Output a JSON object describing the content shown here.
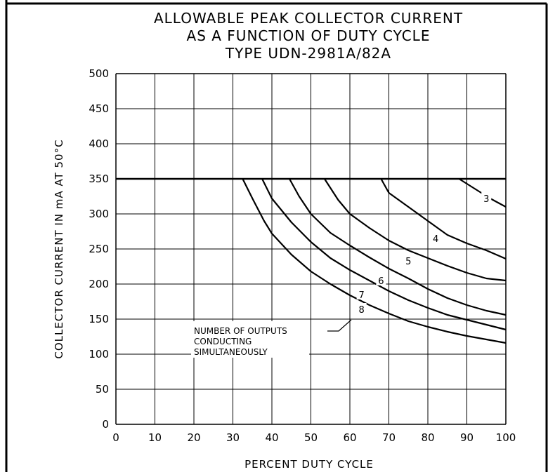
{
  "chart_data": {
    "type": "line",
    "title": [
      "ALLOWABLE PEAK COLLECTOR CURRENT",
      "AS A FUNCTION OF DUTY CYCLE",
      "TYPE UDN-2981A/82A"
    ],
    "xlabel": "PERCENT DUTY CYCLE",
    "ylabel": "COLLECTOR CURRENT IN mA AT 50°C",
    "xlim": [
      0,
      100
    ],
    "ylim": [
      0,
      500
    ],
    "xticks": [
      "0",
      "10",
      "20",
      "30",
      "40",
      "50",
      "60",
      "70",
      "80",
      "90",
      "100"
    ],
    "yticks": [
      "0",
      "50",
      "100",
      "150",
      "200",
      "250",
      "300",
      "350",
      "400",
      "450",
      "500"
    ],
    "grid": true,
    "limit_line": 350,
    "annotation": [
      "NUMBER OF OUTPUTS",
      "CONDUCTING",
      "SIMULTANEOUSLY"
    ],
    "series": [
      {
        "name": "3",
        "x": [
          88,
          92,
          96,
          100
        ],
        "y": [
          350,
          336,
          322,
          310
        ]
      },
      {
        "name": "4",
        "x": [
          68,
          70,
          75,
          80,
          85,
          90,
          95,
          100
        ],
        "y": [
          350,
          330,
          310,
          290,
          270,
          258,
          248,
          236
        ]
      },
      {
        "name": "5",
        "x": [
          53.5,
          57,
          60,
          65,
          70,
          75,
          80,
          85,
          90,
          95,
          100
        ],
        "y": [
          350,
          320,
          300,
          280,
          262,
          248,
          237,
          226,
          216,
          208,
          205
        ]
      },
      {
        "name": "6",
        "x": [
          44.5,
          47,
          50,
          55,
          60,
          65,
          70,
          75,
          80,
          85,
          90,
          95,
          100
        ],
        "y": [
          350,
          325,
          300,
          273,
          255,
          238,
          222,
          208,
          193,
          180,
          170,
          162,
          156
        ]
      },
      {
        "name": "7",
        "x": [
          37.5,
          40,
          45,
          50,
          55,
          60,
          65,
          70,
          75,
          80,
          85,
          90,
          95,
          100
        ],
        "y": [
          350,
          322,
          288,
          260,
          237,
          220,
          205,
          190,
          177,
          166,
          156,
          149,
          142,
          135
        ]
      },
      {
        "name": "8",
        "x": [
          32.5,
          35,
          38,
          40,
          45,
          50,
          55,
          60,
          65,
          70,
          75,
          80,
          85,
          90,
          95,
          100
        ],
        "y": [
          350,
          322,
          290,
          272,
          242,
          218,
          200,
          184,
          170,
          158,
          147,
          139,
          132,
          126,
          121,
          116
        ]
      }
    ]
  }
}
